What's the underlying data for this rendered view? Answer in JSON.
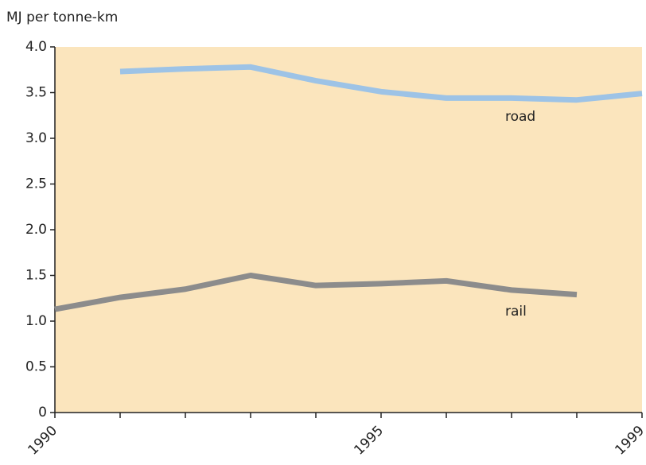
{
  "chart_data": {
    "type": "line",
    "y_label": "MJ  per tonne-km",
    "x": [
      1990,
      1991,
      1992,
      1993,
      1994,
      1995,
      1996,
      1997,
      1998,
      1999
    ],
    "series": [
      {
        "name": "road",
        "color": "#9dc3e6",
        "values": [
          null,
          3.73,
          3.76,
          3.78,
          3.63,
          3.51,
          3.44,
          3.44,
          3.42,
          3.49
        ]
      },
      {
        "name": "rail",
        "color": "#8c8c8c",
        "values": [
          1.13,
          1.26,
          1.35,
          1.5,
          1.39,
          1.41,
          1.44,
          1.34,
          1.29,
          null
        ]
      }
    ],
    "xlim": [
      1990,
      1999
    ],
    "xticks": [
      1990,
      1995,
      1999
    ],
    "xminor_ticks": [
      1991,
      1992,
      1993,
      1994,
      1996,
      1997,
      1998
    ],
    "ylim": [
      0,
      4
    ],
    "yticks": [
      0,
      0.5,
      {
        "value": 1,
        "label": "1.0"
      },
      1.5,
      {
        "value": 2,
        "label": "2.0"
      },
      2.5,
      {
        "value": 3,
        "label": "3.0"
      },
      3.5,
      {
        "value": 4,
        "label": "4.0"
      }
    ],
    "plot_background": "#fbe5bd"
  }
}
